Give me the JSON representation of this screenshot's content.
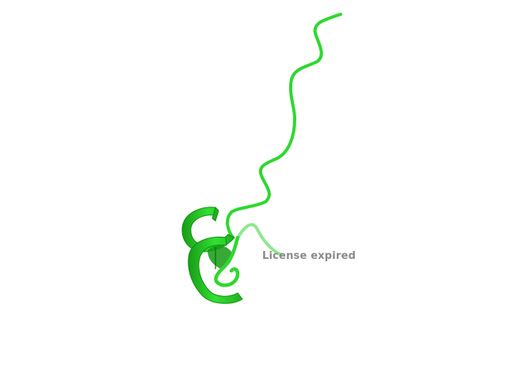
{
  "viewer": {
    "background_color": "#ffffff",
    "structure_color": "#2ed82e",
    "representation": "cartoon",
    "license_notice": "License expired"
  }
}
